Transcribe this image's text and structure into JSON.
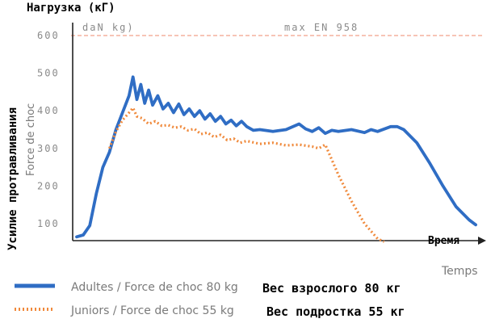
{
  "chart_data": {
    "type": "line",
    "title": "Нагрузка (кГ)",
    "ylabel_ru": "Усилие протравливания",
    "ylabel_fr": "Force de choc",
    "unit_label": "daN kg)",
    "xlabel_ru": "Время",
    "xlabel_fr": "Temps",
    "reference_line": {
      "label": "max EN 958",
      "value": 600,
      "color": "#f2a08a"
    },
    "ylim": [
      50,
      620
    ],
    "y_ticks": [
      "100",
      "200",
      "300",
      "400",
      "500",
      "600"
    ],
    "grid": false,
    "legend_position": "bottom",
    "series": [
      {
        "name": "Adultes / Force de choc 80 kg",
        "name_ru": "Вес взрослого 80 кг",
        "color": "#2f6dc4",
        "style": "solid",
        "points": [
          [
            0.0,
            65
          ],
          [
            0.5,
            70
          ],
          [
            1.0,
            95
          ],
          [
            1.5,
            180
          ],
          [
            2.0,
            250
          ],
          [
            2.5,
            290
          ],
          [
            3.0,
            350
          ],
          [
            3.5,
            395
          ],
          [
            4.0,
            440
          ],
          [
            4.3,
            490
          ],
          [
            4.6,
            430
          ],
          [
            4.9,
            470
          ],
          [
            5.2,
            420
          ],
          [
            5.5,
            455
          ],
          [
            5.8,
            415
          ],
          [
            6.2,
            440
          ],
          [
            6.6,
            405
          ],
          [
            7.0,
            420
          ],
          [
            7.4,
            395
          ],
          [
            7.8,
            418
          ],
          [
            8.2,
            390
          ],
          [
            8.6,
            405
          ],
          [
            9.0,
            385
          ],
          [
            9.4,
            400
          ],
          [
            9.8,
            378
          ],
          [
            10.2,
            392
          ],
          [
            10.6,
            372
          ],
          [
            11.0,
            385
          ],
          [
            11.4,
            365
          ],
          [
            11.8,
            375
          ],
          [
            12.2,
            360
          ],
          [
            12.6,
            372
          ],
          [
            13.0,
            358
          ],
          [
            13.5,
            348
          ],
          [
            14.0,
            350
          ],
          [
            15.0,
            345
          ],
          [
            16.0,
            350
          ],
          [
            17.0,
            365
          ],
          [
            17.5,
            352
          ],
          [
            18.0,
            345
          ],
          [
            18.5,
            355
          ],
          [
            19.0,
            340
          ],
          [
            19.5,
            348
          ],
          [
            20.0,
            345
          ],
          [
            21.0,
            350
          ],
          [
            22.0,
            342
          ],
          [
            22.5,
            350
          ],
          [
            23.0,
            345
          ],
          [
            24.0,
            358
          ],
          [
            24.5,
            358
          ],
          [
            25.0,
            350
          ],
          [
            26.0,
            315
          ],
          [
            27.0,
            260
          ],
          [
            28.0,
            200
          ],
          [
            29.0,
            145
          ],
          [
            30.0,
            110
          ],
          [
            30.5,
            97
          ]
        ]
      },
      {
        "name": "Juniors / Force de choc 55 kg",
        "name_ru": "Вес подростка 55 кг",
        "color": "#f08a3c",
        "style": "dotted",
        "points": [
          [
            2.5,
            300
          ],
          [
            3.0,
            345
          ],
          [
            3.5,
            375
          ],
          [
            4.0,
            395
          ],
          [
            4.3,
            408
          ],
          [
            4.6,
            385
          ],
          [
            5.0,
            380
          ],
          [
            5.5,
            365
          ],
          [
            6.0,
            372
          ],
          [
            6.5,
            360
          ],
          [
            7.0,
            362
          ],
          [
            7.5,
            355
          ],
          [
            8.0,
            358
          ],
          [
            8.5,
            348
          ],
          [
            9.0,
            352
          ],
          [
            9.5,
            338
          ],
          [
            10.0,
            342
          ],
          [
            10.5,
            330
          ],
          [
            11.0,
            336
          ],
          [
            11.5,
            322
          ],
          [
            12.0,
            326
          ],
          [
            12.5,
            315
          ],
          [
            13.0,
            320
          ],
          [
            14.0,
            312
          ],
          [
            15.0,
            315
          ],
          [
            16.0,
            308
          ],
          [
            17.0,
            310
          ],
          [
            18.0,
            305
          ],
          [
            18.5,
            300
          ],
          [
            19.0,
            310
          ],
          [
            19.5,
            270
          ],
          [
            20.0,
            230
          ],
          [
            20.5,
            195
          ],
          [
            21.0,
            160
          ],
          [
            21.5,
            130
          ],
          [
            22.0,
            100
          ],
          [
            22.5,
            80
          ],
          [
            23.0,
            60
          ],
          [
            23.5,
            52
          ]
        ]
      }
    ]
  },
  "legend": {
    "items": [
      {
        "fr": "Adultes / Force de choc 80 kg",
        "ru": "Вес взрослого 80 кг"
      },
      {
        "fr": "Juniors / Force de choc 55 kg",
        "ru": "Вес подростка 55 кг"
      }
    ]
  }
}
